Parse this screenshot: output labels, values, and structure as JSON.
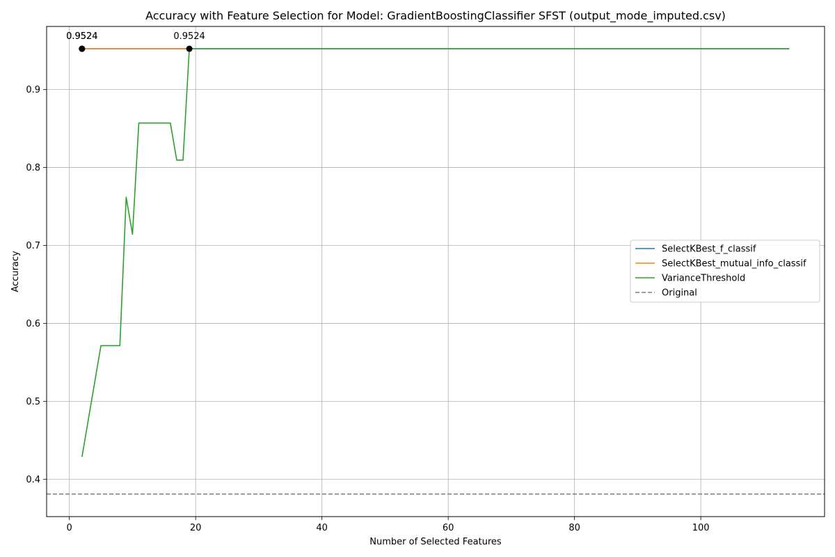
{
  "chart_data": {
    "type": "line",
    "title": "Accuracy with Feature Selection for Model: GradientBoostingClassifier SFST (output_mode_imputed.csv)",
    "xlabel": "Number of Selected Features",
    "ylabel": "Accuracy",
    "xlim": [
      -3.6,
      119.6
    ],
    "ylim": [
      0.352,
      0.981
    ],
    "xticks": [
      0,
      20,
      40,
      60,
      80,
      100
    ],
    "yticks": [
      0.4,
      0.5,
      0.6,
      0.7,
      0.8,
      0.9
    ],
    "grid": true,
    "legend_position": "center-right",
    "series": [
      {
        "name": "SelectKBest_f_classif",
        "color": "#1f77b4",
        "style": "solid",
        "x": [
          2,
          114
        ],
        "y": [
          0.9524,
          0.9524
        ]
      },
      {
        "name": "SelectKBest_mutual_info_classif",
        "color": "#ff7f0e",
        "style": "solid",
        "x": [
          2,
          19
        ],
        "y": [
          0.9524,
          0.9524
        ]
      },
      {
        "name": "VarianceThreshold",
        "color": "#2ca02c",
        "style": "solid",
        "x": [
          2,
          3,
          4,
          5,
          6,
          7,
          8,
          9,
          10,
          11,
          12,
          13,
          14,
          15,
          16,
          17,
          18,
          19,
          20,
          114
        ],
        "y": [
          0.4286,
          0.4762,
          0.5238,
          0.5714,
          0.5714,
          0.5714,
          0.5714,
          0.7619,
          0.7143,
          0.8571,
          0.8571,
          0.8571,
          0.8571,
          0.8571,
          0.8571,
          0.8095,
          0.8095,
          0.9524,
          0.9524,
          0.9524
        ]
      }
    ],
    "reference_line": {
      "name": "Original",
      "y": 0.381,
      "color": "#808080",
      "style": "dashed"
    },
    "annotations": [
      {
        "x": 2,
        "y": 0.9524,
        "label": "0.9524"
      },
      {
        "x": 2,
        "y": 0.9524,
        "label": "0.9524"
      },
      {
        "x": 19,
        "y": 0.9524,
        "label": "0.9524"
      }
    ]
  }
}
